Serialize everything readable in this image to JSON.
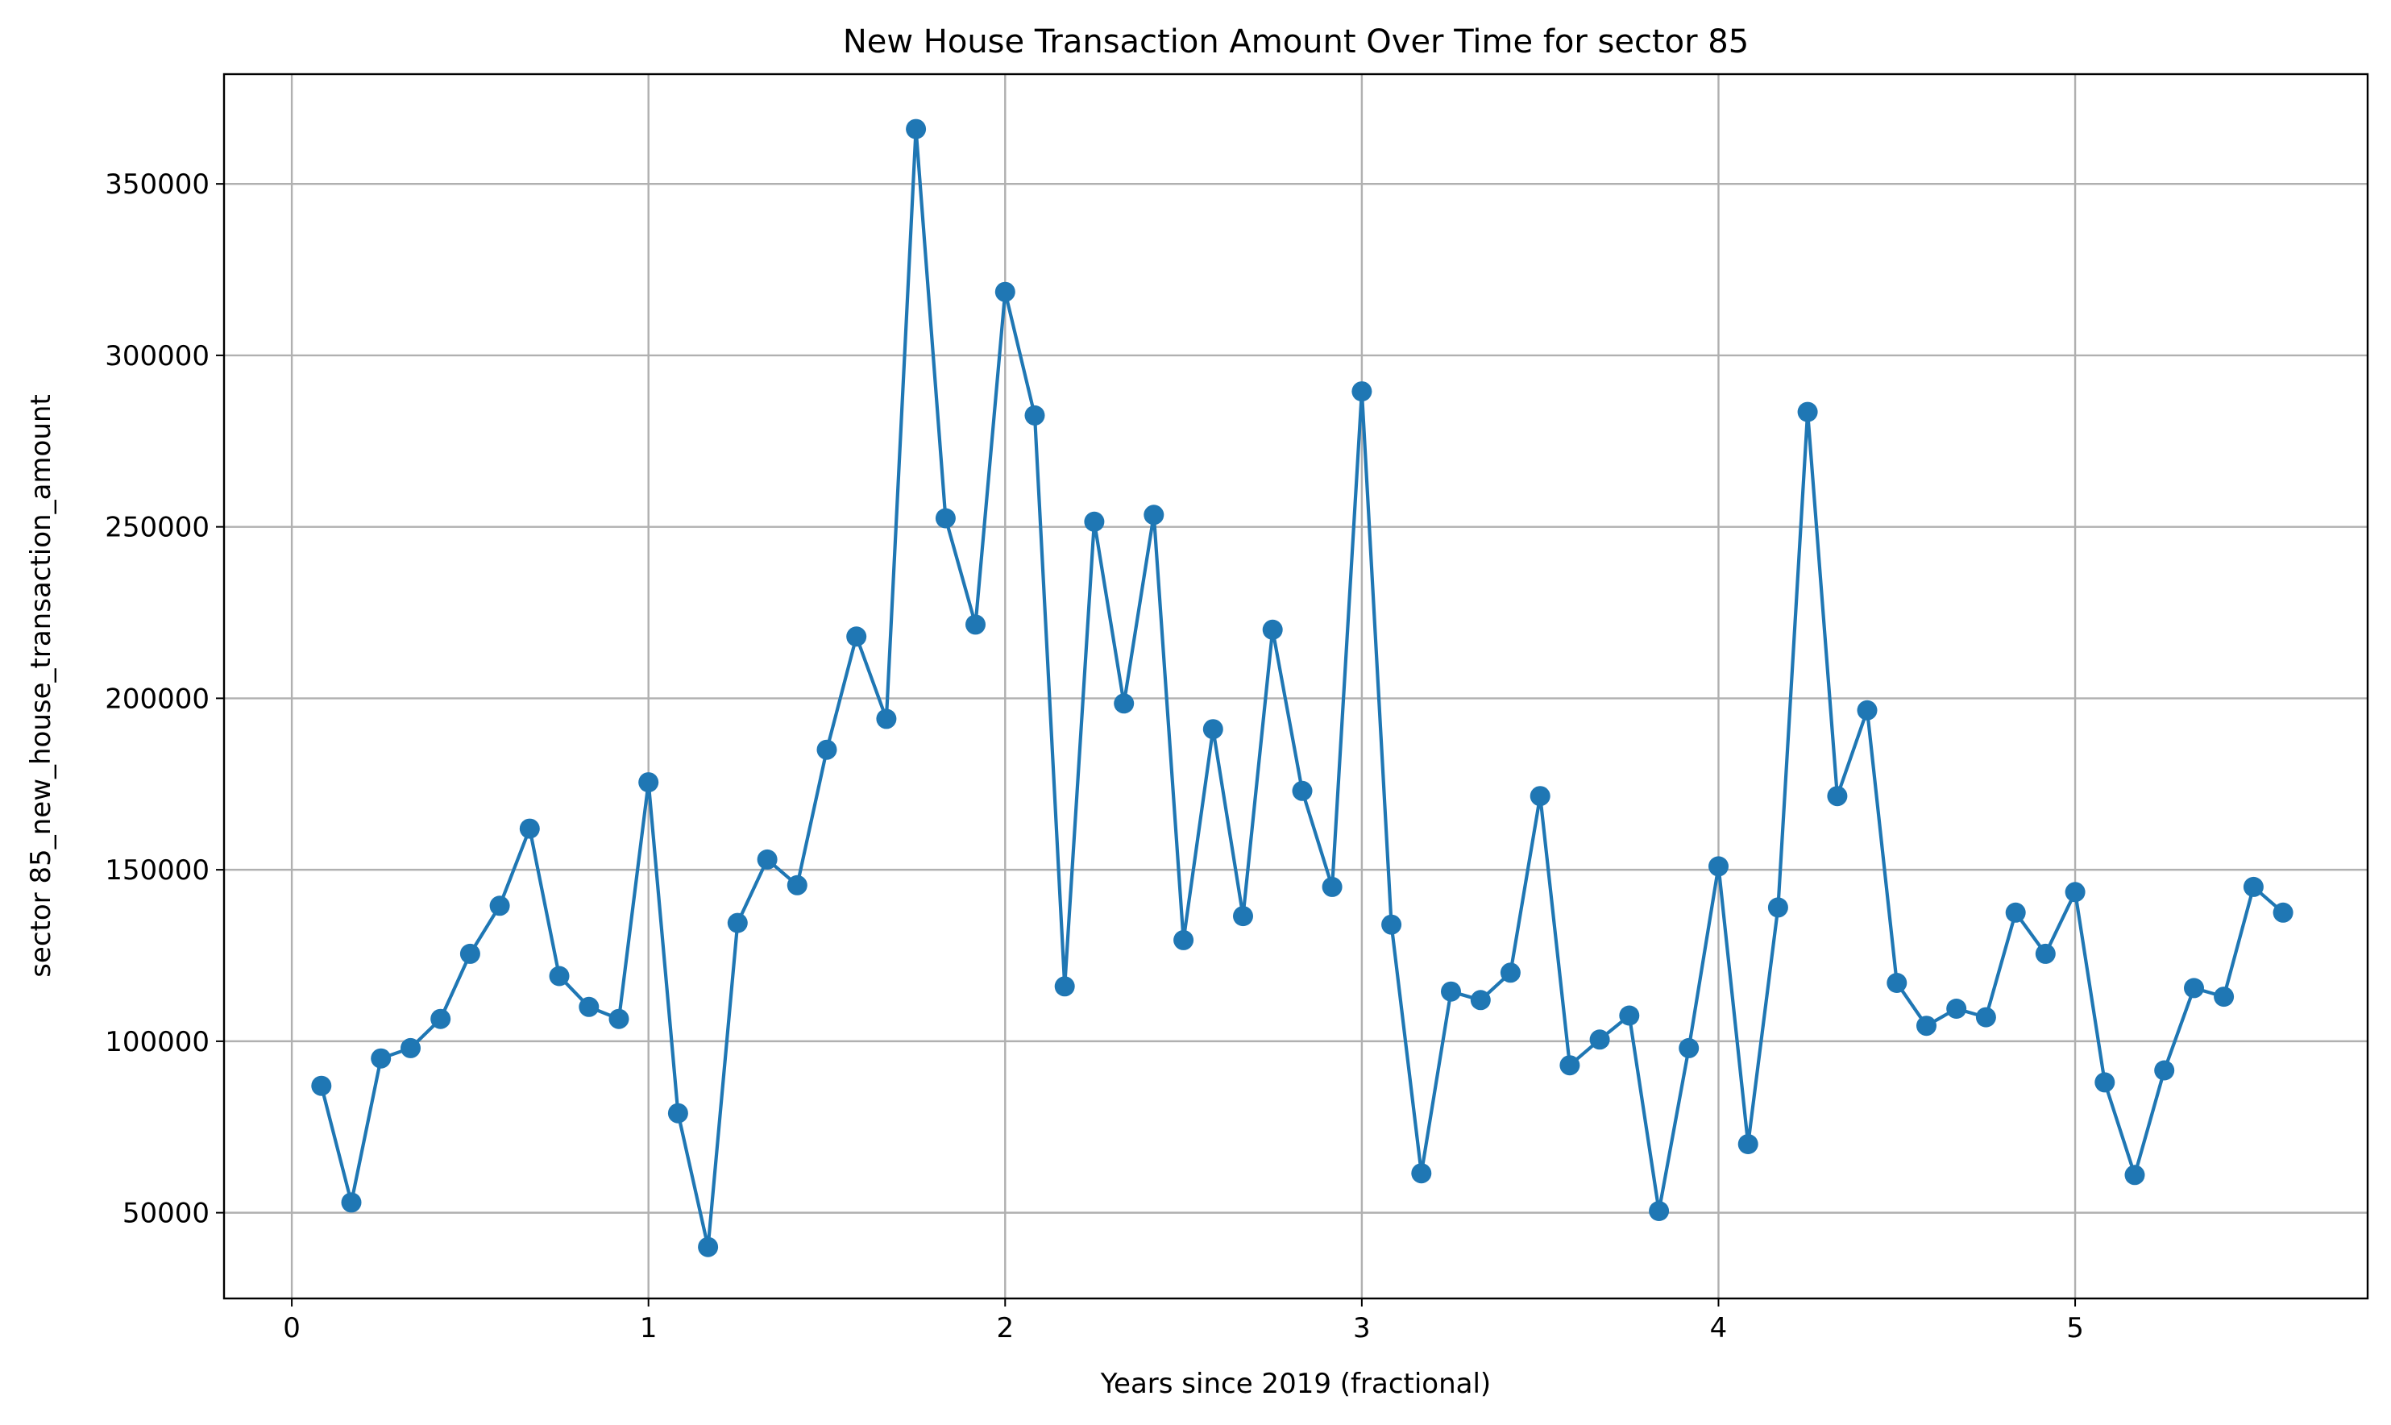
{
  "chart_data": {
    "type": "line",
    "title": "New House Transaction Amount Over Time for sector 85",
    "xlabel": "Years since 2019 (fractional)",
    "ylabel": "sector 85_new_house_transaction_amount",
    "xlim": [
      -0.19,
      5.82
    ],
    "ylim": [
      25000,
      382000
    ],
    "xticks": [
      0,
      1,
      2,
      3,
      4,
      5
    ],
    "yticks": [
      50000,
      100000,
      150000,
      200000,
      250000,
      300000,
      350000
    ],
    "xtick_labels": [
      "0",
      "1",
      "2",
      "3",
      "4",
      "5"
    ],
    "ytick_labels": [
      "50000",
      "100000",
      "150000",
      "200000",
      "250000",
      "300000",
      "350000"
    ],
    "grid": true,
    "marker": "circle",
    "colors": {
      "series": "#1f77b4",
      "grid": "#b0b0b0",
      "axes": "#000000"
    },
    "series": [
      {
        "name": "",
        "x": [
          0.083,
          0.167,
          0.25,
          0.333,
          0.417,
          0.5,
          0.583,
          0.667,
          0.75,
          0.833,
          0.917,
          1.0,
          1.083,
          1.167,
          1.25,
          1.333,
          1.417,
          1.5,
          1.583,
          1.667,
          1.75,
          1.833,
          1.917,
          2.0,
          2.083,
          2.167,
          2.25,
          2.333,
          2.417,
          2.5,
          2.583,
          2.667,
          2.75,
          2.833,
          2.917,
          3.0,
          3.083,
          3.167,
          3.25,
          3.333,
          3.417,
          3.5,
          3.583,
          3.667,
          3.75,
          3.833,
          3.917,
          4.0,
          4.083,
          4.167,
          4.25,
          4.333,
          4.417,
          4.5,
          4.583,
          4.667,
          4.75,
          4.833,
          4.917,
          5.0,
          5.083,
          5.167,
          5.25,
          5.333,
          5.417,
          5.5,
          5.583
        ],
        "y": [
          87000,
          53000,
          95000,
          98000,
          106500,
          125500,
          139500,
          162000,
          119000,
          110000,
          106500,
          175500,
          79000,
          40000,
          134500,
          153000,
          145500,
          185000,
          218000,
          194000,
          366000,
          252500,
          221500,
          318500,
          282500,
          116000,
          251500,
          198500,
          253500,
          129500,
          191000,
          136500,
          220000,
          173000,
          145000,
          289500,
          134000,
          61500,
          114500,
          112000,
          120000,
          171500,
          93000,
          100500,
          107500,
          50500,
          98000,
          151000,
          70000,
          139000,
          283500,
          171500,
          196500,
          117000,
          104500,
          109500,
          107000,
          137500,
          125500,
          143500,
          88000,
          61000,
          91500,
          115500,
          113000,
          145000,
          137500
        ]
      }
    ]
  }
}
